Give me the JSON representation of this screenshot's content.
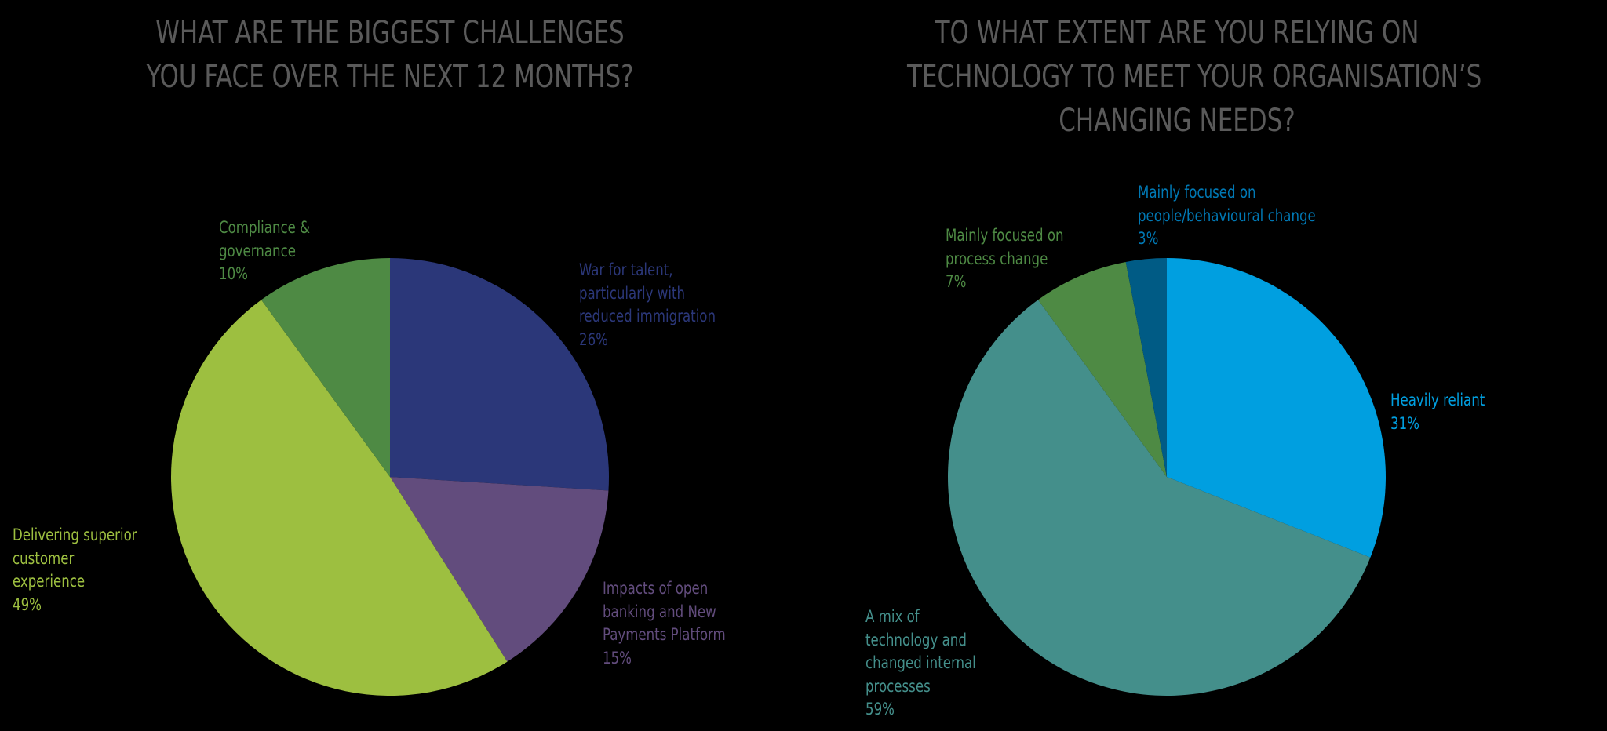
{
  "chart_data": [
    {
      "type": "pie",
      "title": "WHAT ARE THE BIGGEST CHALLENGES YOU FACE OVER THE NEXT 12 MONTHS?",
      "title_lines": [
        "WHAT ARE THE BIGGEST CHALLENGES",
        "YOU FACE OVER THE NEXT 12 MONTHS?"
      ],
      "categories": [
        "War for talent, particularly with reduced immigration",
        "Impacts of open banking and New Payments Platform",
        "Delivering superior customer experience",
        "Compliance & governance"
      ],
      "values": [
        26,
        15,
        49,
        10
      ],
      "unit": "%",
      "colors": [
        "#2b3779",
        "#624c7d",
        "#9dbf40",
        "#4e8a44"
      ],
      "labels": [
        {
          "lines": [
            "War for talent,",
            "particularly with",
            "reduced immigration"
          ],
          "pct": "26%"
        },
        {
          "lines": [
            "Impacts of open",
            "banking and New",
            "Payments Platform"
          ],
          "pct": "15%"
        },
        {
          "lines": [
            "Delivering superior",
            "customer",
            "experience"
          ],
          "pct": "49%"
        },
        {
          "lines": [
            "Compliance &",
            "governance"
          ],
          "pct": "10%"
        }
      ]
    },
    {
      "type": "pie",
      "title": "TO WHAT EXTENT ARE YOU RELYING ON TECHNOLOGY TO MEET YOUR ORGANISATION’S CHANGING NEEDS?",
      "title_lines": [
        "TO WHAT EXTENT ARE YOU RELYING ON",
        "TECHNOLOGY TO MEET YOUR ORGANISATION’S",
        "CHANGING NEEDS?"
      ],
      "categories": [
        "Heavily reliant",
        "A mix of technology and changed internal processes",
        "Mainly focused on process change",
        "Mainly focused on people/behavioural change"
      ],
      "values": [
        31,
        59,
        7,
        3
      ],
      "unit": "%",
      "colors": [
        "#009fe0",
        "#448f8b",
        "#4e8a44",
        "#005b85"
      ],
      "labels": [
        {
          "lines": [
            "Heavily reliant"
          ],
          "pct": "31%"
        },
        {
          "lines": [
            "A mix of",
            "technology and",
            "changed internal",
            "processes"
          ],
          "pct": "59%"
        },
        {
          "lines": [
            "Mainly focused on",
            "process change"
          ],
          "pct": "7%"
        },
        {
          "lines": [
            "Mainly focused on",
            "people/behavioural change"
          ],
          "pct": "3%"
        }
      ]
    }
  ]
}
